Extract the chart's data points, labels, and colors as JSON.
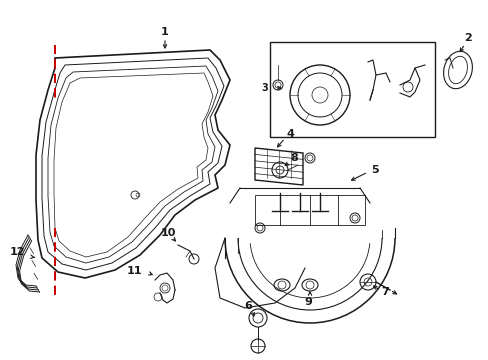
{
  "background_color": "#ffffff",
  "line_color": "#1a1a1a",
  "red_dashed_color": "#cc0000",
  "fig_width": 4.89,
  "fig_height": 3.6,
  "dpi": 100
}
